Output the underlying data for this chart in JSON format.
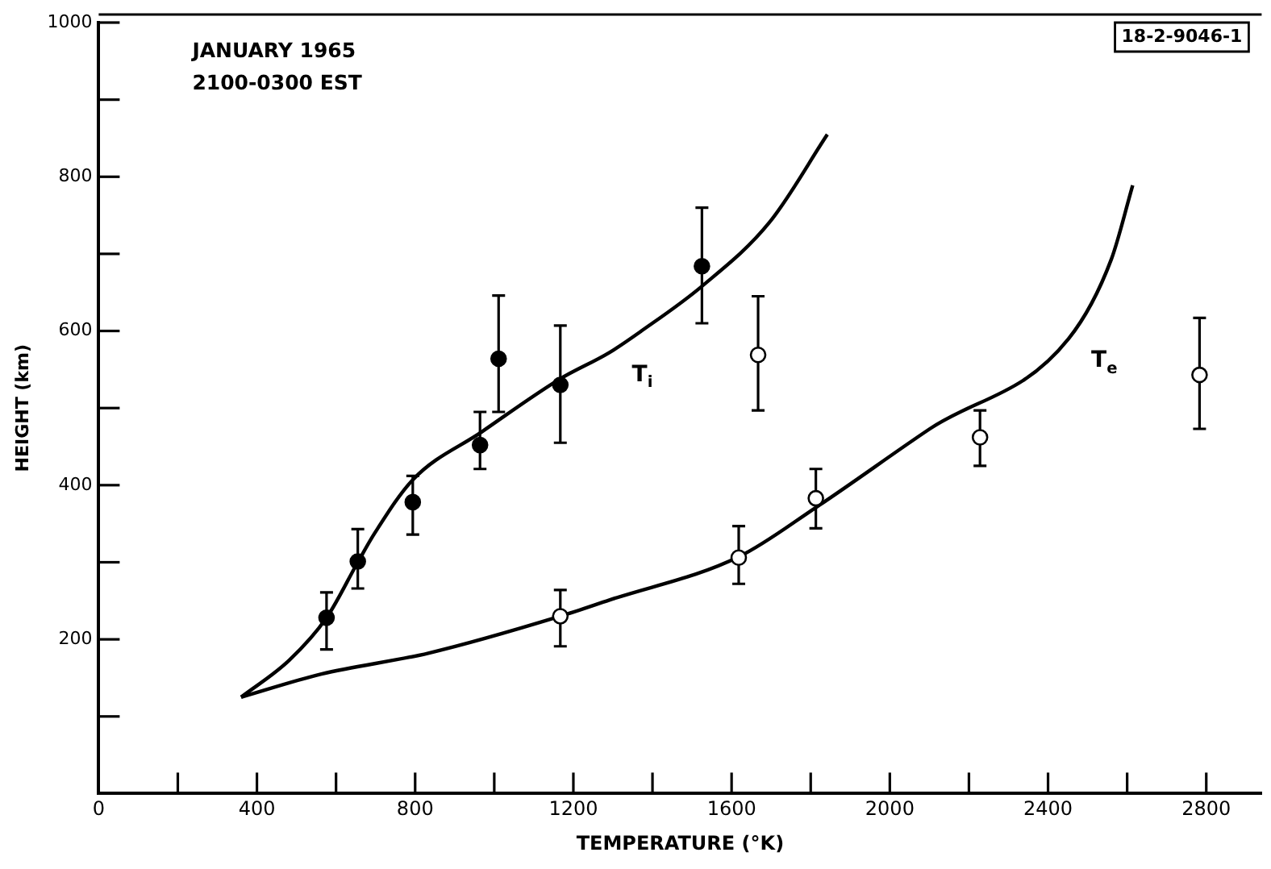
{
  "chart_data": {
    "type": "scatter",
    "xlabel": "TEMPERATURE (°K)",
    "ylabel": "HEIGHT (km)",
    "xlim": [
      0,
      2940
    ],
    "ylim": [
      0,
      1000
    ],
    "xticks": [
      0,
      {
        "value": 200,
        "label": null
      },
      400,
      {
        "value": 600,
        "label": null
      },
      800,
      {
        "value": 1000,
        "label": null
      },
      1200,
      {
        "value": 1400,
        "label": null
      },
      1600,
      {
        "value": 1800,
        "label": null
      },
      2000,
      {
        "value": 2200,
        "label": null
      },
      2400,
      {
        "value": 2600,
        "label": null
      },
      2800
    ],
    "yticks": [
      {
        "value": 0,
        "label": null
      },
      {
        "value": 100,
        "label": null
      },
      200,
      {
        "value": 300,
        "label": null
      },
      400,
      {
        "value": 500,
        "label": null
      },
      600,
      {
        "value": 700,
        "label": null
      },
      800,
      {
        "value": 900,
        "label": null
      },
      1000
    ],
    "grid": false,
    "legend": false,
    "series": [
      {
        "type": "line",
        "name": "T$_{i}$",
        "color": "#000000",
        "marker": "none",
        "line_style": "solid",
        "x": [
          360,
          482,
          576,
          655,
          698,
          794,
          968,
          1167,
          1291,
          1372,
          1525,
          1696,
          1842
        ],
        "values": [
          125,
          173,
          228,
          300,
          338,
          407,
          469,
          538,
          572,
          600,
          658,
          741,
          855
        ]
      },
      {
        "type": "line",
        "name": "T$_{e}$",
        "color": "#000000",
        "marker": "none",
        "line_style": "solid",
        "x": [
          360,
          563,
          833,
          1167,
          1291,
          1618,
          1813,
          2101,
          2452,
          2560,
          2614
        ],
        "values": [
          125,
          155,
          182,
          230,
          251,
          307,
          371,
          473,
          590,
          693,
          789
        ]
      },
      {
        "color": "#000000",
        "marker": "circle",
        "x": [
          576,
          655,
          794,
          964,
          1011,
          1167,
          1525
        ],
        "values": [
          228,
          301,
          378,
          452,
          564,
          530,
          684
        ],
        "errors": [
          [
            187,
            261
          ],
          [
            266,
            343
          ],
          [
            336,
            412
          ],
          [
            421,
            495
          ],
          [
            495,
            646
          ],
          [
            455,
            607
          ],
          [
            610,
            760
          ]
        ]
      },
      {
        "color": "#ffffff",
        "marker": "circle",
        "x": [
          1167,
          1618,
          1667,
          1813,
          2228,
          2783
        ],
        "values": [
          230,
          306,
          569,
          383,
          462,
          543
        ],
        "errors": [
          [
            191,
            264
          ],
          [
            272,
            347
          ],
          [
            497,
            645
          ],
          [
            344,
            421
          ],
          [
            425,
            497
          ],
          [
            473,
            617
          ]
        ]
      }
    ],
    "annotations": [
      "JANUARY 1965",
      "2100-0300 EST",
      "18-2-9046-1"
    ]
  }
}
